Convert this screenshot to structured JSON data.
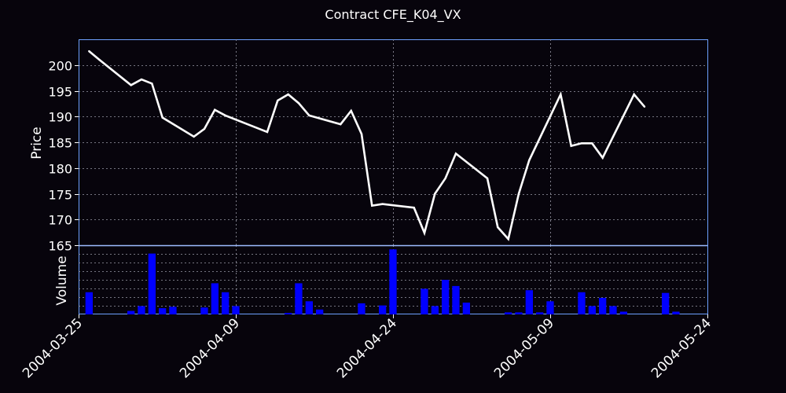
{
  "chart_data": {
    "type": "line",
    "title": "Contract CFE_K04_VX",
    "x_tick_labels": [
      "2004-03-25",
      "2004-04-09",
      "2004-04-24",
      "2004-05-09",
      "2004-05-24"
    ],
    "xlim": [
      "2004-03-25",
      "2004-05-24"
    ],
    "grid": true,
    "price_panel": {
      "ylabel": "Price",
      "ylim": [
        165,
        205
      ],
      "y_ticks": [
        165,
        170,
        175,
        180,
        185,
        190,
        195,
        200
      ],
      "series": [
        {
          "line_color": "#ffffff",
          "points": [
            {
              "date": "2004-03-26",
              "value": 202.7
            },
            {
              "date": "2004-03-27",
              "value": 201.0
            },
            {
              "date": "2004-03-30",
              "value": 196.1
            },
            {
              "date": "2004-03-31",
              "value": 197.2
            },
            {
              "date": "2004-04-01",
              "value": 196.4
            },
            {
              "date": "2004-04-02",
              "value": 189.8
            },
            {
              "date": "2004-04-05",
              "value": 186.1
            },
            {
              "date": "2004-04-06",
              "value": 187.6
            },
            {
              "date": "2004-04-07",
              "value": 191.3
            },
            {
              "date": "2004-04-08",
              "value": 190.2
            },
            {
              "date": "2004-04-12",
              "value": 187.0
            },
            {
              "date": "2004-04-13",
              "value": 193.1
            },
            {
              "date": "2004-04-14",
              "value": 194.3
            },
            {
              "date": "2004-04-15",
              "value": 192.6
            },
            {
              "date": "2004-04-16",
              "value": 190.2
            },
            {
              "date": "2004-04-19",
              "value": 188.5
            },
            {
              "date": "2004-04-20",
              "value": 191.1
            },
            {
              "date": "2004-04-21",
              "value": 186.6
            },
            {
              "date": "2004-04-22",
              "value": 172.7
            },
            {
              "date": "2004-04-23",
              "value": 173.0
            },
            {
              "date": "2004-04-26",
              "value": 172.3
            },
            {
              "date": "2004-04-27",
              "value": 167.4
            },
            {
              "date": "2004-04-28",
              "value": 175.0
            },
            {
              "date": "2004-04-29",
              "value": 178.0
            },
            {
              "date": "2004-04-30",
              "value": 182.8
            },
            {
              "date": "2004-05-03",
              "value": 178.0
            },
            {
              "date": "2004-05-04",
              "value": 168.5
            },
            {
              "date": "2004-05-05",
              "value": 166.2
            },
            {
              "date": "2004-05-06",
              "value": 175.0
            },
            {
              "date": "2004-05-07",
              "value": 181.5
            },
            {
              "date": "2004-05-10",
              "value": 194.3
            },
            {
              "date": "2004-05-11",
              "value": 184.3
            },
            {
              "date": "2004-05-12",
              "value": 184.8
            },
            {
              "date": "2004-05-13",
              "value": 184.8
            },
            {
              "date": "2004-05-14",
              "value": 182.0
            },
            {
              "date": "2004-05-17",
              "value": 194.3
            },
            {
              "date": "2004-05-18",
              "value": 191.9
            }
          ]
        }
      ]
    },
    "volume_panel": {
      "ylabel": "Volume",
      "bar_color": "#0000ff",
      "y_range": [
        0,
        1
      ],
      "grid_levels": [
        0.125,
        0.25,
        0.375,
        0.5,
        0.625,
        0.75,
        0.875
      ],
      "bars": [
        {
          "date": "2004-03-26",
          "value": 0.32
        },
        {
          "date": "2004-03-30",
          "value": 0.05
        },
        {
          "date": "2004-03-31",
          "value": 0.12
        },
        {
          "date": "2004-04-01",
          "value": 0.88
        },
        {
          "date": "2004-04-02",
          "value": 0.09
        },
        {
          "date": "2004-04-03",
          "value": 0.11
        },
        {
          "date": "2004-04-06",
          "value": 0.1
        },
        {
          "date": "2004-04-07",
          "value": 0.45
        },
        {
          "date": "2004-04-08",
          "value": 0.32
        },
        {
          "date": "2004-04-09",
          "value": 0.12
        },
        {
          "date": "2004-04-14",
          "value": 0.02
        },
        {
          "date": "2004-04-15",
          "value": 0.45
        },
        {
          "date": "2004-04-16",
          "value": 0.19
        },
        {
          "date": "2004-04-17",
          "value": 0.07
        },
        {
          "date": "2004-04-21",
          "value": 0.16
        },
        {
          "date": "2004-04-23",
          "value": 0.13
        },
        {
          "date": "2004-04-24",
          "value": 0.94
        },
        {
          "date": "2004-04-27",
          "value": 0.37
        },
        {
          "date": "2004-04-28",
          "value": 0.12
        },
        {
          "date": "2004-04-29",
          "value": 0.5
        },
        {
          "date": "2004-04-30",
          "value": 0.41
        },
        {
          "date": "2004-05-01",
          "value": 0.17
        },
        {
          "date": "2004-05-05",
          "value": 0.03
        },
        {
          "date": "2004-05-06",
          "value": 0.03
        },
        {
          "date": "2004-05-07",
          "value": 0.35
        },
        {
          "date": "2004-05-08",
          "value": 0.03
        },
        {
          "date": "2004-05-09",
          "value": 0.19
        },
        {
          "date": "2004-05-12",
          "value": 0.32
        },
        {
          "date": "2004-05-13",
          "value": 0.12
        },
        {
          "date": "2004-05-14",
          "value": 0.24
        },
        {
          "date": "2004-05-15",
          "value": 0.12
        },
        {
          "date": "2004-05-16",
          "value": 0.04
        },
        {
          "date": "2004-05-20",
          "value": 0.31
        },
        {
          "date": "2004-05-21",
          "value": 0.04
        }
      ]
    }
  }
}
